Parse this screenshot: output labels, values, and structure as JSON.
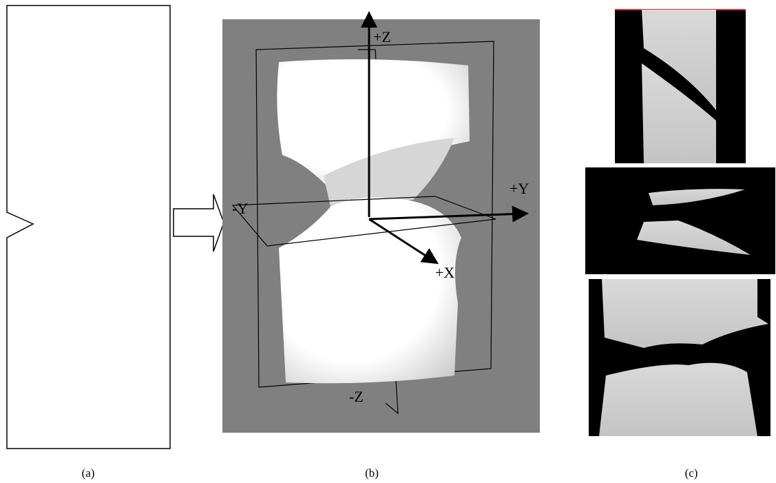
{
  "panel_a": {
    "label": "(a)"
  },
  "panel_b": {
    "label": "(b)",
    "axes": {
      "plus_z": "+Z",
      "minus_z": "-Z",
      "plus_y": "+Y",
      "minus_y": "-Y",
      "plus_x": "+X"
    }
  },
  "panel_c": {
    "label": "(c)"
  }
}
